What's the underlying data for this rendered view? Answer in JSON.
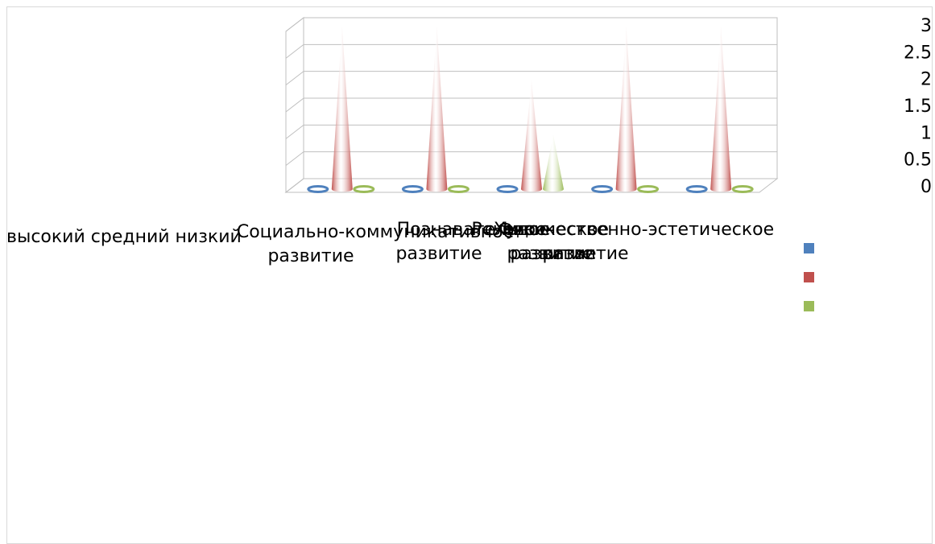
{
  "chart_data": {
    "type": "bar",
    "bar_shape": "cone-3d",
    "categories": [
      "Социально-коммуникативное развитие",
      "Познавательное развитие",
      "Речевое развитие",
      "Художественно-эстетическое развитие",
      "Физическое развитие"
    ],
    "category_lines": [
      [
        "Социально-коммуникативное",
        "развитие"
      ],
      [
        "Познавательное",
        "развитие"
      ],
      [
        "Речевое",
        "развитие"
      ],
      [
        "Художественно-эстетическое",
        "развитие"
      ],
      [
        "Физическое",
        "развитие"
      ]
    ],
    "series": [
      {
        "name": "высокий",
        "color": "#4f81bd",
        "values": [
          0,
          0,
          0,
          0,
          0
        ]
      },
      {
        "name": "средний",
        "color": "#c0504d",
        "values": [
          3,
          3,
          2,
          3,
          3
        ]
      },
      {
        "name": "низкий",
        "color": "#9bbb59",
        "values": [
          0,
          0,
          1,
          0,
          0
        ]
      }
    ],
    "series_names_text": "высокий средний низкий",
    "ylim": [
      0,
      3
    ],
    "yticks": [
      "0",
      "0.5",
      "1",
      "1.5",
      "2",
      "2.5",
      "3"
    ],
    "ytick_values": [
      0,
      0.5,
      1,
      1.5,
      2,
      2.5,
      3
    ],
    "grid": true,
    "title": "",
    "xlabel": "",
    "ylabel": "",
    "legend_position": "right"
  }
}
